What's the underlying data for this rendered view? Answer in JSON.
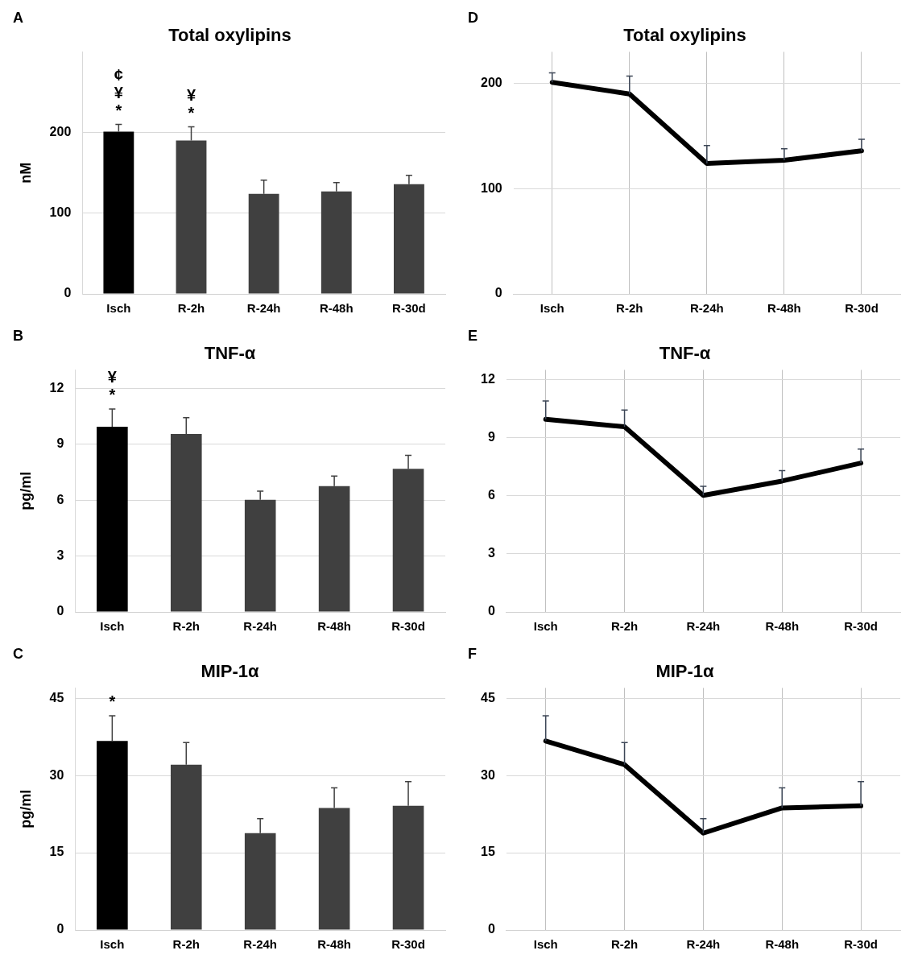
{
  "chart_data": [
    {
      "type": "bar",
      "title": "Total oxylipins",
      "ylabel": "nM",
      "categories": [
        "Isch",
        "R-2h",
        "R-24h",
        "R-48h",
        "R-30d"
      ],
      "values": [
        201,
        190,
        124,
        127,
        136
      ],
      "colors": [
        "#000000",
        "#404040",
        "#404040",
        "#404040",
        "#404040"
      ],
      "errors": [
        9,
        17,
        17,
        11,
        11
      ],
      "ylim": [
        0,
        300
      ],
      "yticks": [
        0,
        100,
        200
      ],
      "grid": "y",
      "annotations": [
        "A",
        {
          "text": "*",
          "x": "Isch",
          "y": 201
        },
        {
          "text": "¥",
          "x": "Isch",
          "y": 201
        },
        {
          "text": "¢",
          "x": "Isch",
          "y": 201
        },
        {
          "text": "*",
          "x": "R-2h",
          "y": 190
        },
        {
          "text": "¥",
          "x": "R-2h",
          "y": 190
        }
      ]
    },
    {
      "type": "line",
      "title": "Total oxylipins",
      "categories": [
        "Isch",
        "R-2h",
        "R-24h",
        "R-48h",
        "R-30d"
      ],
      "values": [
        201,
        190,
        124,
        127,
        136
      ],
      "color": "#000000",
      "errors": [
        9,
        17,
        17,
        11,
        11
      ],
      "ylim": [
        0,
        230
      ],
      "yticks": [
        0,
        100,
        200
      ],
      "grid": true,
      "annotations": [
        "D"
      ]
    },
    {
      "type": "bar",
      "title": "TNF-α",
      "ylabel": "pg/ml",
      "categories": [
        "Isch",
        "R-2h",
        "R-24h",
        "R-48h",
        "R-30d"
      ],
      "values": [
        9.95,
        9.56,
        6.02,
        6.76,
        7.69
      ],
      "colors": [
        "#000000",
        "#404040",
        "#404040",
        "#404040",
        "#404040"
      ],
      "errors": [
        0.95,
        0.87,
        0.47,
        0.54,
        0.72
      ],
      "ylim": [
        0,
        13
      ],
      "yticks": [
        0,
        3,
        6,
        9,
        12
      ],
      "grid": "y",
      "annotations": [
        "B",
        {
          "text": "*",
          "x": "Isch",
          "y": 9.95
        },
        {
          "text": "¥",
          "x": "Isch",
          "y": 9.95
        }
      ]
    },
    {
      "type": "line",
      "title": "TNF-α",
      "categories": [
        "Isch",
        "R-2h",
        "R-24h",
        "R-48h",
        "R-30d"
      ],
      "values": [
        9.95,
        9.56,
        6.02,
        6.76,
        7.69
      ],
      "color": "#000000",
      "errors": [
        0.95,
        0.87,
        0.47,
        0.54,
        0.72
      ],
      "ylim": [
        0,
        12.5
      ],
      "yticks": [
        0,
        3,
        6,
        9,
        12
      ],
      "grid": true,
      "annotations": [
        "E"
      ]
    },
    {
      "type": "bar",
      "title": "MIP-1α",
      "ylabel": "pg/ml",
      "categories": [
        "Isch",
        "R-2h",
        "R-24h",
        "R-48h",
        "R-30d"
      ],
      "values": [
        36.7,
        32.1,
        18.8,
        23.7,
        24.1
      ],
      "colors": [
        "#000000",
        "#404040",
        "#404040",
        "#404040",
        "#404040"
      ],
      "errors": [
        4.9,
        4.3,
        2.8,
        3.9,
        4.7
      ],
      "ylim": [
        0,
        47
      ],
      "yticks": [
        0,
        15,
        30,
        45
      ],
      "grid": "y",
      "annotations": [
        "C",
        {
          "text": "*",
          "x": "Isch",
          "y": 36.7
        }
      ]
    },
    {
      "type": "line",
      "title": "MIP-1α",
      "categories": [
        "Isch",
        "R-2h",
        "R-24h",
        "R-48h",
        "R-30d"
      ],
      "values": [
        36.7,
        32.1,
        18.8,
        23.7,
        24.1
      ],
      "color": "#000000",
      "errors": [
        4.9,
        4.3,
        2.8,
        3.9,
        4.7
      ],
      "ylim": [
        0,
        47
      ],
      "yticks": [
        0,
        15,
        30,
        45
      ],
      "grid": true,
      "annotations": [
        "F"
      ]
    }
  ]
}
